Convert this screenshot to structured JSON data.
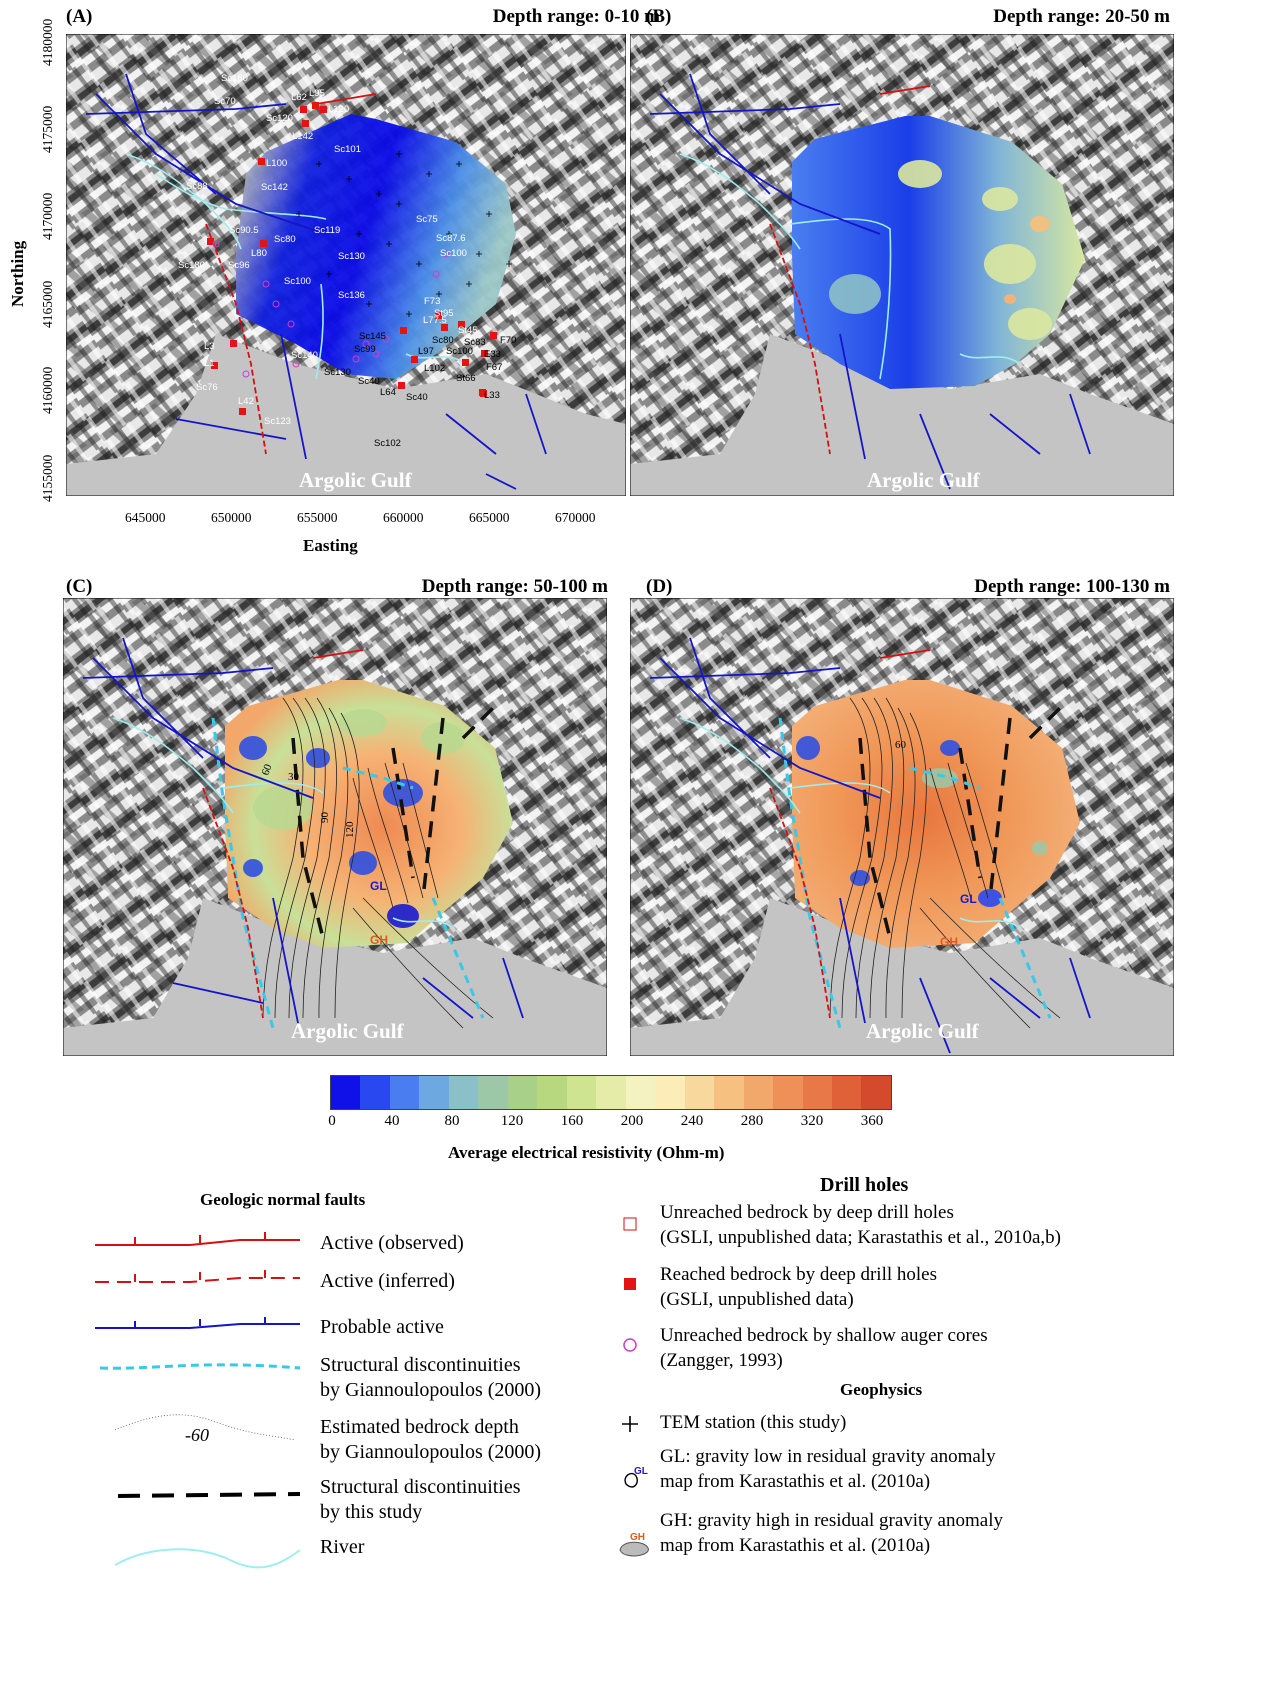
{
  "panels": [
    {
      "label": "(A)",
      "depth": "Depth range: 0-10 m",
      "gulf": "Argolic Gulf"
    },
    {
      "label": "(B)",
      "depth": "Depth range: 20-50 m",
      "gulf": "Argolic Gulf"
    },
    {
      "label": "(C)",
      "depth": "Depth range: 50-100 m",
      "gulf": "Argolic Gulf"
    },
    {
      "label": "(D)",
      "depth": "Depth range: 100-130 m",
      "gulf": "Argolic Gulf"
    }
  ],
  "axes": {
    "xlabel": "Easting",
    "ylabel": "Northing",
    "xticks": [
      "645000",
      "650000",
      "655000",
      "660000",
      "665000",
      "670000"
    ],
    "yticks": [
      "4180000",
      "4175000",
      "4170000",
      "4165000",
      "4160000",
      "4155000"
    ]
  },
  "contour_labels": {
    "c1": "60",
    "c2": "30",
    "c3": "90",
    "c4": "120",
    "c5": "60",
    "gl": "GL",
    "gh": "GH"
  },
  "drill_labels": [
    "Sc180",
    "Sc70",
    "L62",
    "L95",
    "L120",
    "Sc120",
    "L142",
    "Sc101",
    "L100",
    "Sc88",
    "Sc142",
    "Sc90.5",
    "L80",
    "Sc80",
    "Sc119",
    "Sc130",
    "Sc180",
    "Sc96",
    "Sc100",
    "Sc136",
    "Sc75",
    "Sc87.6",
    "Sc100",
    "F73",
    "St95",
    "L77.5",
    "St45",
    "Sc80",
    "Sc83",
    "F70",
    "Sc145",
    "Sc99",
    "Sc100",
    "L97",
    "E33",
    "F67",
    "L3",
    "L1",
    "Sc140",
    "L102",
    "Sc130",
    "St66",
    "Sc40",
    "L64",
    "Sc76",
    "L42",
    "Sc40",
    "L33",
    "Sc123",
    "Sc102"
  ],
  "colorbar": {
    "ticks": [
      "0",
      "40",
      "80",
      "120",
      "160",
      "200",
      "240",
      "280",
      "320",
      "360"
    ],
    "title": "Average electrical resistivity (Ohm-m)",
    "colors": [
      "#1010e8",
      "#2a48f0",
      "#4a7ef0",
      "#6ea8e0",
      "#8cc0c8",
      "#9cc8a8",
      "#a8d088",
      "#b8d880",
      "#cfe490",
      "#e4eca8",
      "#f4f2c0",
      "#fcecb8",
      "#f8d89c",
      "#f6c080",
      "#f2a86a",
      "#ee9058",
      "#e87848",
      "#e06038",
      "#d44a2c"
    ]
  },
  "legend": {
    "faults_title": "Geologic normal faults",
    "faults": [
      {
        "text": "Active (observed)"
      },
      {
        "text": "Active (inferred)"
      },
      {
        "text": "Probable active"
      },
      {
        "text": "Structural discontinuities",
        "text2": "by Giannoulopoulos (2000)"
      },
      {
        "text": "Estimated bedrock depth",
        "text2": "by Giannoulopoulos (2000)",
        "sample": "-60"
      },
      {
        "text": "Structural discontinuities",
        "text2": "by this study"
      },
      {
        "text": "River"
      }
    ],
    "drill_title": "Drill holes",
    "drill": [
      {
        "text": "Unreached bedrock by deep drill holes",
        "text2": "(GSLI, unpublished data; Karastathis et al., 2010a,b)"
      },
      {
        "text": "Reached bedrock by deep drill holes",
        "text2": "(GSLI, unpublished data)"
      },
      {
        "text": "Unreached bedrock by shallow auger cores",
        "text2": "(Zangger, 1993)"
      }
    ],
    "geo_title": "Geophysics",
    "geo": [
      {
        "text": "TEM station (this study)"
      },
      {
        "text": "GL: gravity low in residual gravity anomaly",
        "text2": "map from Karastathis et al. (2010a)",
        "icon": "GL"
      },
      {
        "text": "GH: gravity high in residual gravity anomaly",
        "text2": "map from Karastathis et al. (2010a)",
        "icon": "GH"
      }
    ]
  }
}
